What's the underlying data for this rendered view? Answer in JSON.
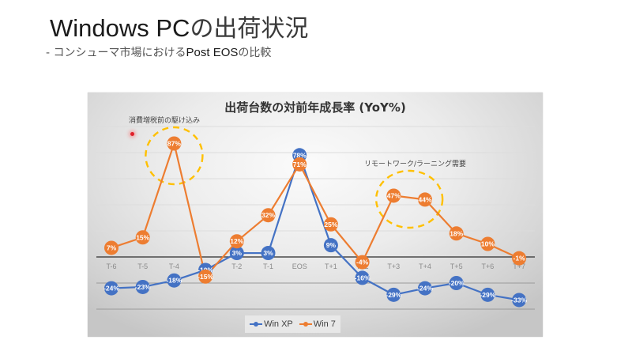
{
  "slide": {
    "title_latin": "Windows PC",
    "title_jp": "の出荷状況",
    "subtitle_prefix": "- コンシューマ市場における",
    "subtitle_emph": "Post EOS",
    "subtitle_suffix": "の比較"
  },
  "chart_data": {
    "type": "line",
    "title": "出荷台数の対前年成長率 (YoY%)",
    "xlabel": "",
    "ylabel": "",
    "categories": [
      "T-6",
      "T-5",
      "T-4",
      "T-3",
      "T-2",
      "T-1",
      "EOS",
      "T+1",
      "T+2",
      "T+3",
      "T+4",
      "T+5",
      "T+6",
      "T+7"
    ],
    "series": [
      {
        "name": "Win XP",
        "color": "#4472C4",
        "values": [
          -24,
          -23,
          -18,
          -10,
          3,
          3,
          78,
          9,
          -16,
          -29,
          -24,
          -20,
          -29,
          -33
        ]
      },
      {
        "name": "Win 7",
        "color": "#ED7D31",
        "values": [
          7,
          15,
          87,
          -15,
          12,
          32,
          71,
          25,
          -4,
          47,
          44,
          18,
          10,
          -1
        ]
      }
    ],
    "ylim": [
      -40,
      100
    ],
    "yticks": [
      -40,
      -20,
      0,
      20,
      40,
      60,
      80,
      100
    ],
    "value_label_suffix": "%",
    "grid": true,
    "legend_position": "bottom",
    "highlight_color": "#FFC000",
    "annotations": [
      {
        "text": "消費増税前の駆け込み",
        "targets": [
          "T-4"
        ]
      },
      {
        "text": "リモートワーク/ラーニング需要",
        "targets": [
          "T+3",
          "T+4"
        ]
      }
    ]
  }
}
